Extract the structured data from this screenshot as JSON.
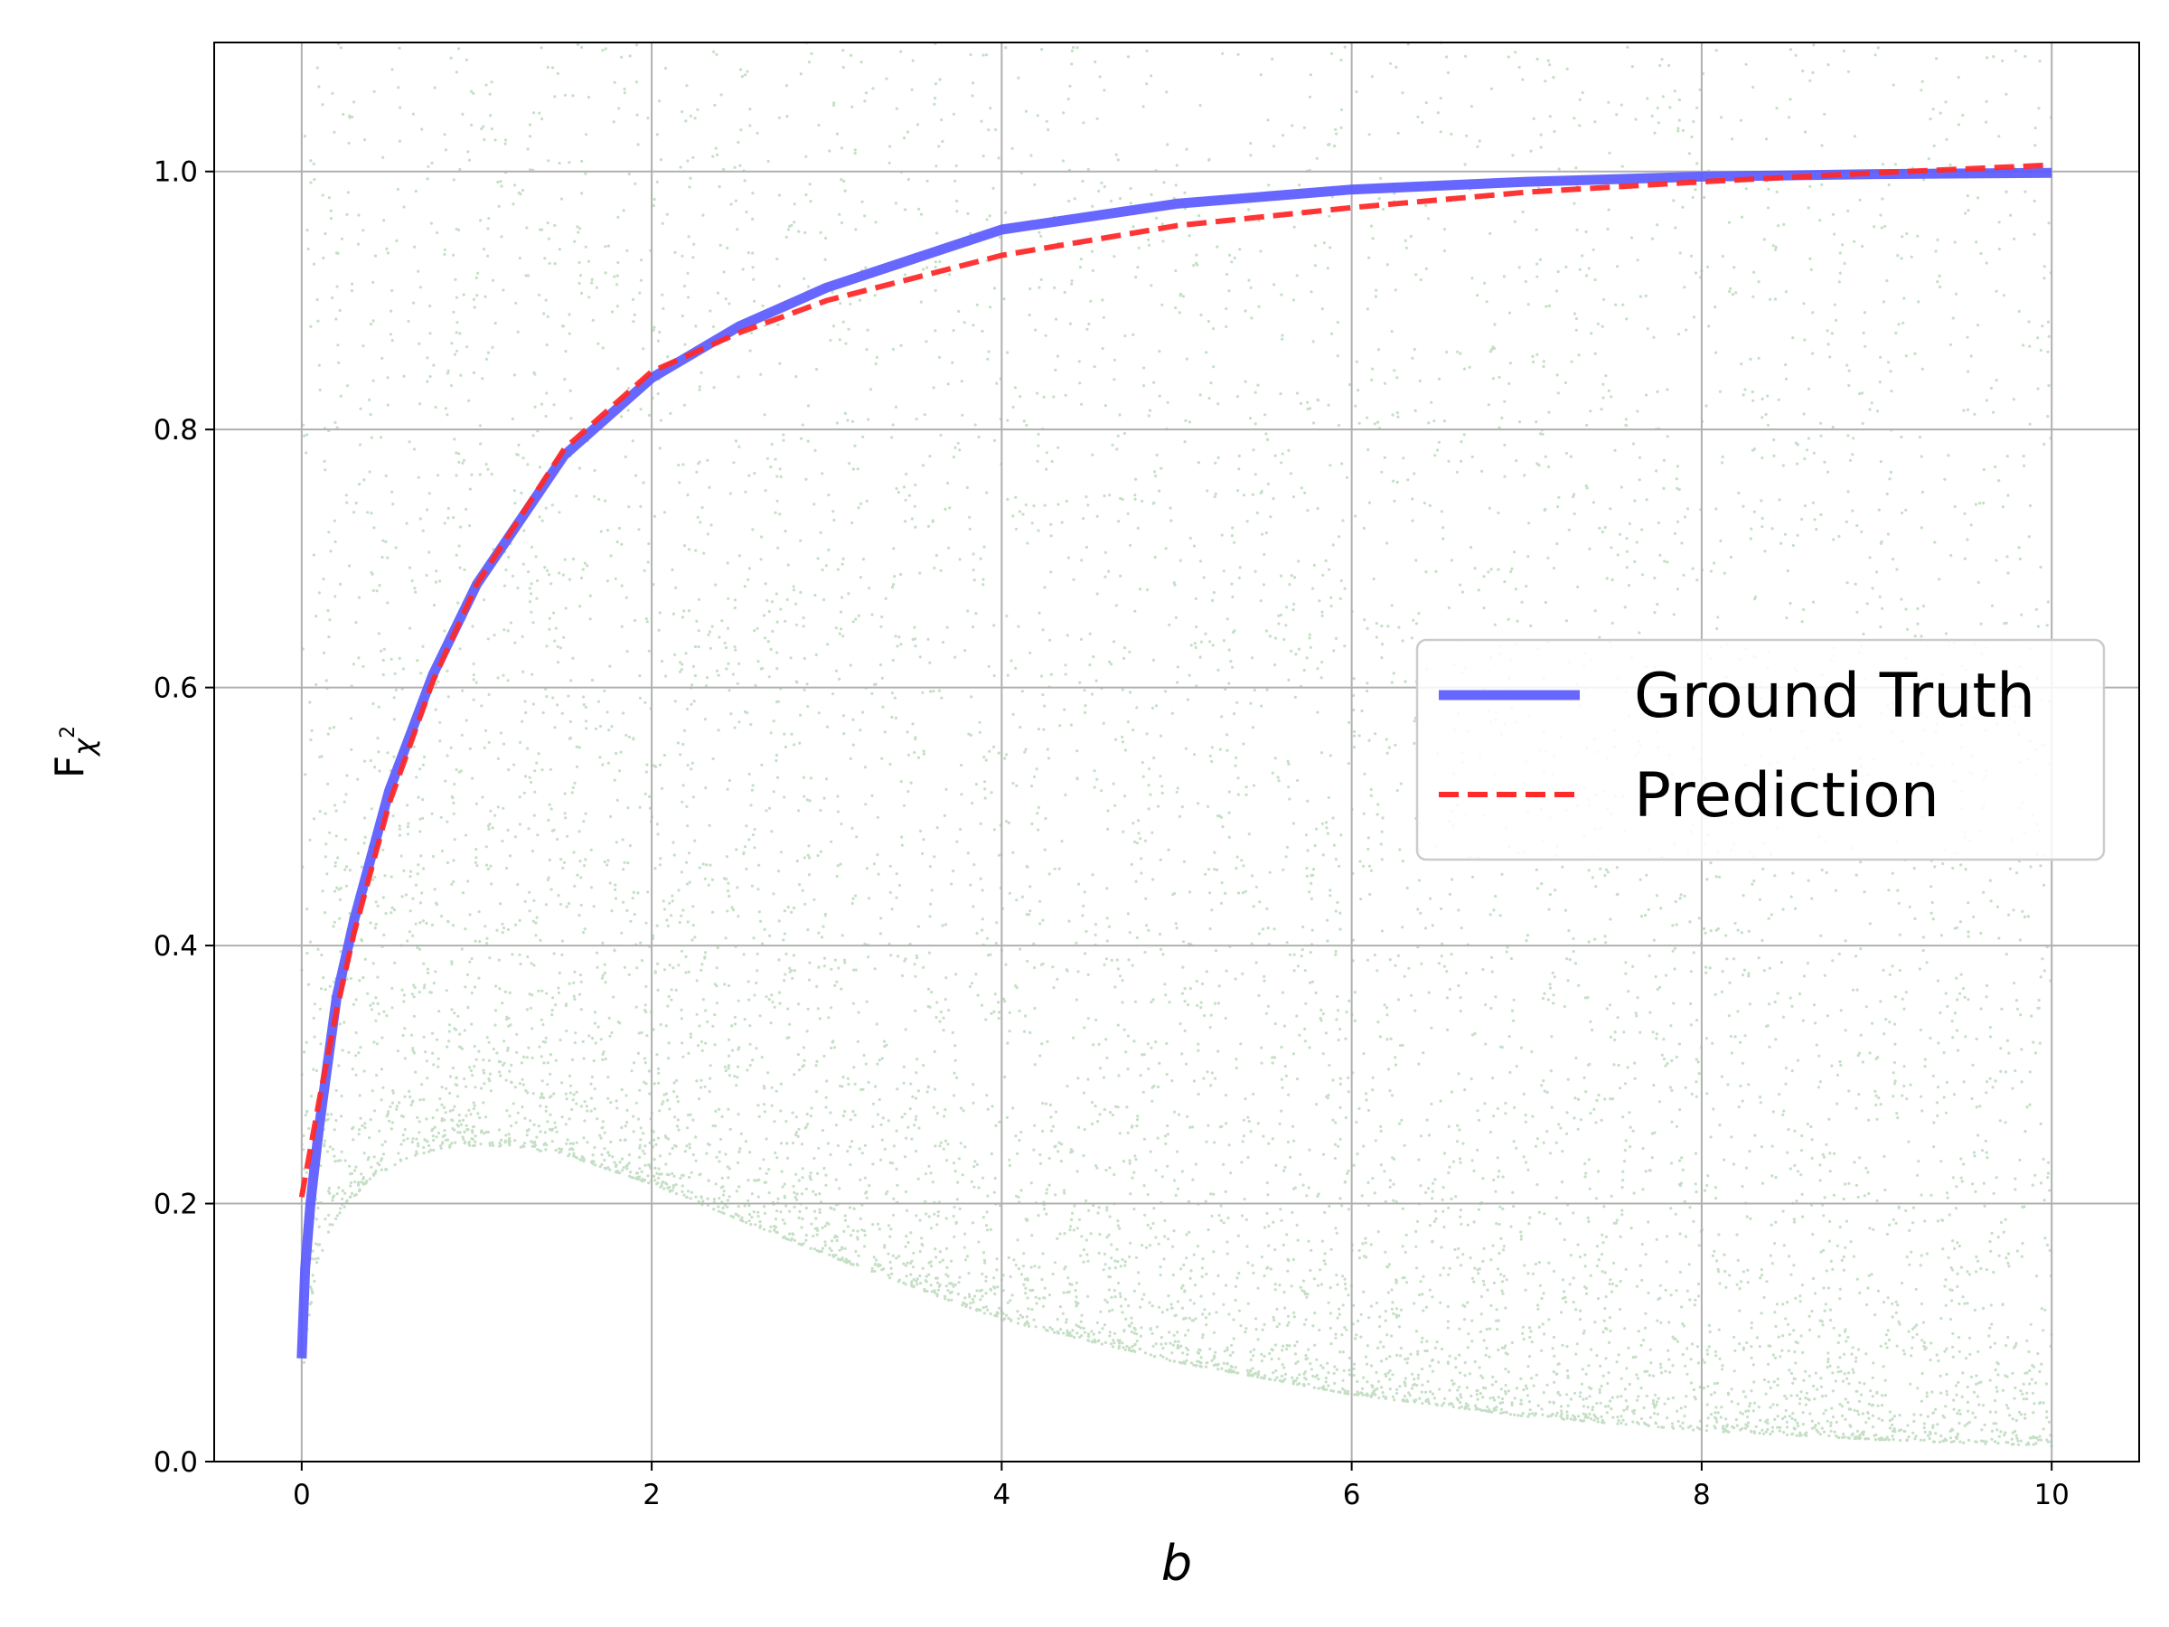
{
  "chart_data": {
    "type": "line",
    "title": "",
    "xlabel": "b",
    "ylabel": {
      "base": "F",
      "sub": "χ",
      "sup": "2"
    },
    "xlim": [
      -0.5,
      10.5
    ],
    "ylim": [
      0.0,
      1.1
    ],
    "xticks": [
      0,
      2,
      4,
      6,
      8,
      10
    ],
    "yticks": [
      0.0,
      0.2,
      0.4,
      0.6,
      0.8,
      1.0
    ],
    "xtick_labels": [
      "0",
      "2",
      "4",
      "6",
      "8",
      "10"
    ],
    "ytick_labels": [
      "0.0",
      "0.2",
      "0.4",
      "0.6",
      "0.8",
      "1.0"
    ],
    "grid": true,
    "legend_position": "center-right",
    "series": [
      {
        "name": "Ground Truth",
        "style": "solid",
        "color": "#5a5aff",
        "x": [
          0.0,
          0.02,
          0.05,
          0.1,
          0.2,
          0.3,
          0.5,
          0.75,
          1.0,
          1.5,
          2.0,
          2.5,
          3.0,
          4.0,
          5.0,
          6.0,
          7.0,
          8.0,
          9.0,
          10.0
        ],
        "y": [
          0.08,
          0.15,
          0.2,
          0.26,
          0.36,
          0.42,
          0.52,
          0.61,
          0.68,
          0.78,
          0.84,
          0.88,
          0.91,
          0.955,
          0.975,
          0.986,
          0.992,
          0.996,
          0.998,
          0.999
        ]
      },
      {
        "name": "Prediction",
        "style": "dashed",
        "color": "#ff2a2a",
        "x": [
          0.0,
          0.1,
          0.2,
          0.3,
          0.5,
          0.75,
          1.0,
          1.5,
          2.0,
          2.5,
          3.0,
          4.0,
          5.0,
          6.0,
          7.0,
          8.0,
          9.0,
          10.0
        ],
        "y": [
          0.205,
          0.28,
          0.35,
          0.41,
          0.51,
          0.605,
          0.68,
          0.785,
          0.845,
          0.875,
          0.9,
          0.935,
          0.958,
          0.972,
          0.984,
          0.992,
          0.999,
          1.005
        ]
      }
    ],
    "scatter": {
      "color": "#2e8b2e",
      "description_envelope_x": [
        0.0,
        0.05,
        0.1,
        0.2,
        0.4,
        0.6,
        0.8,
        1.0,
        1.2,
        1.5,
        2.0,
        3.0,
        4.0,
        5.0,
        6.0,
        7.0,
        8.0,
        9.0,
        10.0
      ],
      "description_envelope_y": [
        0.06,
        0.12,
        0.15,
        0.19,
        0.22,
        0.235,
        0.243,
        0.245,
        0.244,
        0.238,
        0.215,
        0.16,
        0.11,
        0.077,
        0.052,
        0.035,
        0.024,
        0.017,
        0.012
      ]
    }
  }
}
